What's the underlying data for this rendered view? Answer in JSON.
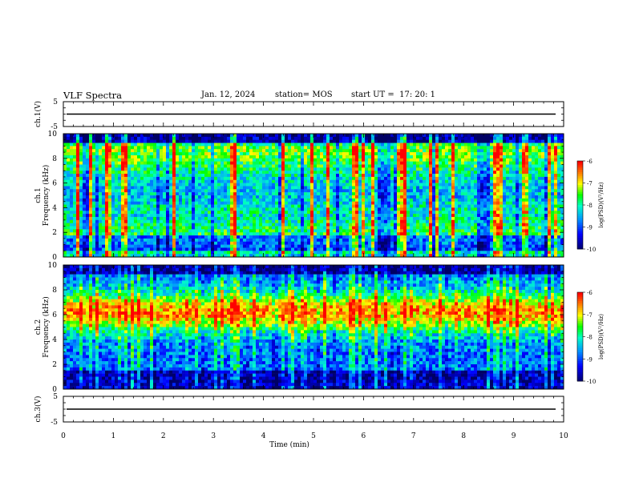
{
  "header": {
    "title": "VLF Spectra",
    "date": "Jan. 12, 2024",
    "station": "station= MOS",
    "start": "start UT =  17: 20: 1"
  },
  "chart_data": [
    {
      "type": "line",
      "panel": "ch1-waveform",
      "ylabel": "ch.1(V)",
      "ylim": [
        -5,
        5
      ],
      "y_ticks": [
        "5",
        "-5"
      ],
      "baseline": 0,
      "color": "#000000"
    },
    {
      "type": "heatmap",
      "panel": "ch1-spectrogram",
      "ylabel": "ch.1",
      "ylabel2": "Frequency (kHz)",
      "ylim": [
        0,
        10
      ],
      "y_ticks": [
        "0",
        "2",
        "4",
        "6",
        "8",
        "10"
      ],
      "xlim": [
        0,
        10
      ],
      "colorbar": {
        "label": "log(PSD)(V²/Hz)",
        "range": [
          -10,
          -6
        ],
        "ticks": [
          "-6",
          "-7",
          "-8",
          "-9",
          "-10"
        ]
      },
      "colormap": [
        "#000080",
        "#0000ff",
        "#00aaff",
        "#00ffcc",
        "#00ff00",
        "#ffff00",
        "#ff8800",
        "#ff0000",
        "#ffffff"
      ]
    },
    {
      "type": "heatmap",
      "panel": "ch2-spectrogram",
      "ylabel": "ch.2",
      "ylabel2": "Frequency (kHz)",
      "ylim": [
        0,
        10
      ],
      "y_ticks": [
        "0",
        "2",
        "4",
        "6",
        "8",
        "10"
      ],
      "xlim": [
        0,
        10
      ],
      "colorbar": {
        "label": "log(PSD)(V²/Hz)",
        "range": [
          -10,
          -6
        ],
        "ticks": [
          "-6",
          "-7",
          "-8",
          "-9",
          "-10"
        ]
      }
    },
    {
      "type": "line",
      "panel": "ch3-waveform",
      "ylabel": "ch.3(V)",
      "ylim": [
        -5,
        5
      ],
      "y_ticks": [
        "5",
        "-5"
      ],
      "baseline": 0,
      "color": "#000000",
      "xlabel": "Time (min)",
      "xlim": [
        0,
        10
      ],
      "x_ticks": [
        "0",
        "1",
        "2",
        "3",
        "4",
        "5",
        "6",
        "7",
        "8",
        "9",
        "10"
      ]
    }
  ]
}
